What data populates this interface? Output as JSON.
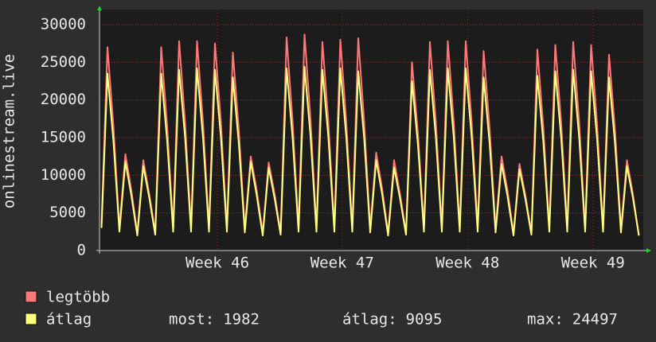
{
  "chart_data": {
    "type": "line",
    "y_label": "onlinestream.live",
    "x": [
      0,
      1,
      2,
      3,
      4,
      5,
      6,
      7,
      8,
      9,
      10,
      11,
      12,
      13,
      14,
      15,
      16,
      17,
      18,
      19,
      20,
      21,
      22,
      23,
      24,
      25,
      26,
      27,
      28,
      29,
      30,
      31,
      32,
      33,
      34,
      35,
      36,
      37,
      38,
      39,
      40,
      41,
      42,
      43,
      44,
      45,
      46,
      47,
      48,
      49,
      50,
      51,
      52,
      53,
      54,
      55,
      56,
      57,
      58,
      59,
      60,
      61,
      62,
      63,
      64,
      65,
      66,
      67,
      68,
      69,
      70,
      71,
      72,
      73,
      74,
      75,
      76,
      77,
      78,
      79,
      80,
      81,
      82,
      83,
      84,
      85,
      86,
      87,
      88,
      89,
      90
    ],
    "xlim": [
      -0.33,
      90.73
    ],
    "xticks": [
      {
        "value": 19.4,
        "label": "Week 46"
      },
      {
        "value": 40.3,
        "label": "Week 47"
      },
      {
        "value": 61.3,
        "label": "Week 48"
      },
      {
        "value": 82.3,
        "label": "Week 49"
      }
    ],
    "ylim": [
      0,
      32000
    ],
    "yticks": [
      0,
      5000,
      10000,
      15000,
      20000,
      25000,
      30000
    ],
    "grid": true,
    "series": [
      {
        "name": "legtöbb",
        "color": "#ff7777",
        "values": [
          3500,
          27000,
          16500,
          3000,
          12800,
          8000,
          2300,
          12000,
          7500,
          2400,
          27000,
          16500,
          3000,
          27800,
          17000,
          3000,
          27800,
          17000,
          3000,
          27500,
          17000,
          3000,
          26300,
          16000,
          2900,
          12500,
          8000,
          2300,
          11700,
          7500,
          2400,
          28300,
          17200,
          3000,
          28700,
          17500,
          3000,
          27700,
          17000,
          3000,
          28000,
          17000,
          3000,
          28200,
          17000,
          2900,
          13000,
          8200,
          2300,
          12000,
          7500,
          2400,
          25000,
          15500,
          3000,
          27700,
          17000,
          3000,
          27800,
          17000,
          3000,
          27800,
          17000,
          3000,
          26500,
          16200,
          2900,
          12500,
          8000,
          2300,
          11500,
          7300,
          2400,
          26700,
          16300,
          3000,
          27300,
          16800,
          3000,
          27700,
          17000,
          3000,
          27300,
          16800,
          3000,
          26000,
          16000,
          2900,
          12000,
          7500,
          2000
        ]
      },
      {
        "name": "átlag",
        "color": "#ffff80",
        "values": [
          3000,
          23500,
          14500,
          2500,
          11800,
          7300,
          2000,
          11200,
          7000,
          2100,
          23500,
          14500,
          2500,
          24000,
          15000,
          2500,
          24200,
          15000,
          2500,
          24000,
          15000,
          2500,
          23000,
          14200,
          2400,
          11800,
          7300,
          2000,
          11000,
          6900,
          2100,
          24200,
          15000,
          2500,
          24400,
          15200,
          2500,
          24000,
          15000,
          2500,
          24200,
          15000,
          2500,
          23800,
          14800,
          2400,
          12000,
          7500,
          2000,
          11000,
          6900,
          2100,
          22500,
          14000,
          2500,
          24000,
          15000,
          2500,
          24200,
          15000,
          2500,
          24200,
          15000,
          2500,
          23000,
          14200,
          2400,
          11500,
          7200,
          2000,
          10800,
          6800,
          2100,
          23200,
          14400,
          2500,
          23800,
          14800,
          2500,
          24000,
          15000,
          2500,
          23800,
          14800,
          2500,
          23000,
          14200,
          2400,
          11200,
          7000,
          1982
        ]
      }
    ],
    "stats": [
      {
        "label": "most:",
        "value": 1982
      },
      {
        "label": "átlag:",
        "value": 9095
      },
      {
        "label": "max:",
        "value": 24497
      }
    ]
  }
}
